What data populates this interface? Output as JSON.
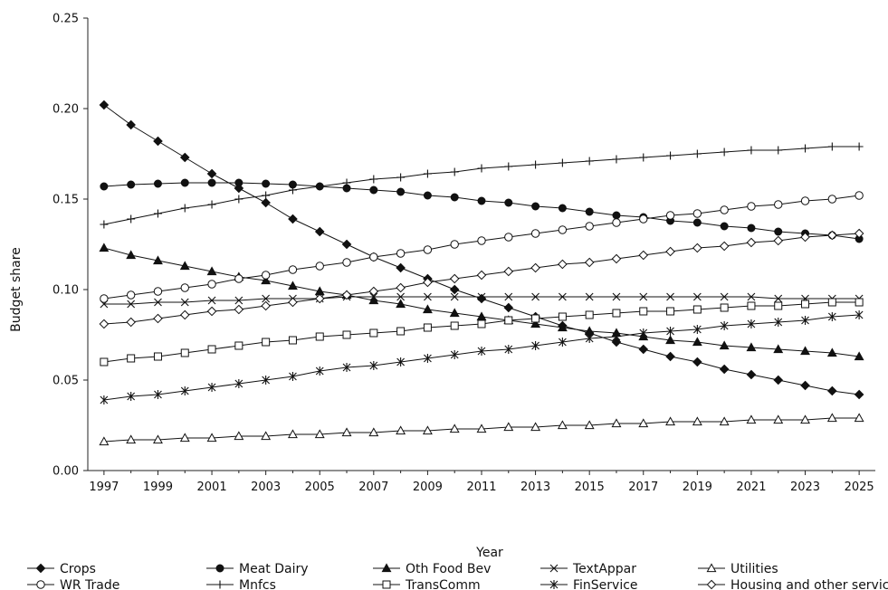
{
  "chart_data": {
    "type": "line",
    "title": "",
    "xlabel": "Year",
    "ylabel": "Budget share",
    "xlim": [
      1996.4,
      2025.6
    ],
    "ylim": [
      0,
      0.25
    ],
    "yticks": [
      "0.00",
      "0.05",
      "0.10",
      "0.15",
      "0.20",
      "0.25"
    ],
    "xticks": [
      "1997",
      "1999",
      "2001",
      "2003",
      "2005",
      "2007",
      "2009",
      "2011",
      "2013",
      "2015",
      "2017",
      "2019",
      "2021",
      "2023",
      "2025"
    ],
    "grid": false,
    "legend_position": "bottom",
    "x_start": 1997,
    "x_end": 2025,
    "series": [
      {
        "name": "Crops",
        "marker": "diamond-filled",
        "values": [
          0.202,
          0.191,
          0.182,
          0.173,
          0.164,
          0.156,
          0.148,
          0.139,
          0.132,
          0.125,
          0.118,
          0.112,
          0.106,
          0.1,
          0.095,
          0.09,
          0.085,
          0.08,
          0.076,
          0.071,
          0.067,
          0.063,
          0.06,
          0.056,
          0.053,
          0.05,
          0.047,
          0.044,
          0.042
        ]
      },
      {
        "name": "Meat Dairy",
        "marker": "circle-filled",
        "values": [
          0.157,
          0.158,
          0.1585,
          0.159,
          0.159,
          0.159,
          0.1585,
          0.158,
          0.157,
          0.156,
          0.155,
          0.154,
          0.152,
          0.151,
          0.149,
          0.148,
          0.146,
          0.145,
          0.143,
          0.141,
          0.14,
          0.138,
          0.137,
          0.135,
          0.134,
          0.132,
          0.131,
          0.13,
          0.128
        ]
      },
      {
        "name": "Oth Food Bev",
        "marker": "triangle-filled",
        "values": [
          0.123,
          0.119,
          0.116,
          0.113,
          0.11,
          0.107,
          0.105,
          0.102,
          0.099,
          0.097,
          0.094,
          0.092,
          0.089,
          0.087,
          0.085,
          0.083,
          0.081,
          0.079,
          0.077,
          0.076,
          0.074,
          0.072,
          0.071,
          0.069,
          0.068,
          0.067,
          0.066,
          0.065,
          0.063
        ]
      },
      {
        "name": "TextAppar",
        "marker": "x",
        "values": [
          0.092,
          0.092,
          0.093,
          0.093,
          0.094,
          0.094,
          0.095,
          0.095,
          0.095,
          0.096,
          0.096,
          0.096,
          0.096,
          0.096,
          0.096,
          0.096,
          0.096,
          0.096,
          0.096,
          0.096,
          0.096,
          0.096,
          0.096,
          0.096,
          0.096,
          0.095,
          0.095,
          0.095,
          0.095
        ]
      },
      {
        "name": "Utilities",
        "marker": "triangle-open",
        "values": [
          0.016,
          0.017,
          0.017,
          0.018,
          0.018,
          0.019,
          0.019,
          0.02,
          0.02,
          0.021,
          0.021,
          0.022,
          0.022,
          0.023,
          0.023,
          0.024,
          0.024,
          0.025,
          0.025,
          0.026,
          0.026,
          0.027,
          0.027,
          0.027,
          0.028,
          0.028,
          0.028,
          0.029,
          0.029
        ]
      },
      {
        "name": "WR Trade",
        "marker": "circle-open",
        "values": [
          0.095,
          0.097,
          0.099,
          0.101,
          0.103,
          0.106,
          0.108,
          0.111,
          0.113,
          0.115,
          0.118,
          0.12,
          0.122,
          0.125,
          0.127,
          0.129,
          0.131,
          0.133,
          0.135,
          0.137,
          0.139,
          0.141,
          0.142,
          0.144,
          0.146,
          0.147,
          0.149,
          0.15,
          0.152
        ]
      },
      {
        "name": "Mnfcs",
        "marker": "plus",
        "values": [
          0.136,
          0.139,
          0.142,
          0.145,
          0.147,
          0.15,
          0.152,
          0.155,
          0.157,
          0.159,
          0.161,
          0.162,
          0.164,
          0.165,
          0.167,
          0.168,
          0.169,
          0.17,
          0.171,
          0.172,
          0.173,
          0.174,
          0.175,
          0.176,
          0.177,
          0.177,
          0.178,
          0.179,
          0.179
        ]
      },
      {
        "name": "TransComm",
        "marker": "square-open",
        "values": [
          0.06,
          0.062,
          0.063,
          0.065,
          0.067,
          0.069,
          0.071,
          0.072,
          0.074,
          0.075,
          0.076,
          0.077,
          0.079,
          0.08,
          0.081,
          0.083,
          0.084,
          0.085,
          0.086,
          0.087,
          0.088,
          0.088,
          0.089,
          0.09,
          0.091,
          0.091,
          0.092,
          0.093,
          0.093
        ]
      },
      {
        "name": "FinService",
        "marker": "asterisk",
        "values": [
          0.039,
          0.041,
          0.042,
          0.044,
          0.046,
          0.048,
          0.05,
          0.052,
          0.055,
          0.057,
          0.058,
          0.06,
          0.062,
          0.064,
          0.066,
          0.067,
          0.069,
          0.071,
          0.073,
          0.074,
          0.076,
          0.077,
          0.078,
          0.08,
          0.081,
          0.082,
          0.083,
          0.085,
          0.086
        ]
      },
      {
        "name": "Housing and other services",
        "marker": "diamond-open",
        "values": [
          0.081,
          0.082,
          0.084,
          0.086,
          0.088,
          0.089,
          0.091,
          0.093,
          0.095,
          0.097,
          0.099,
          0.101,
          0.104,
          0.106,
          0.108,
          0.11,
          0.112,
          0.114,
          0.115,
          0.117,
          0.119,
          0.121,
          0.123,
          0.124,
          0.126,
          0.127,
          0.129,
          0.13,
          0.131
        ]
      }
    ]
  }
}
